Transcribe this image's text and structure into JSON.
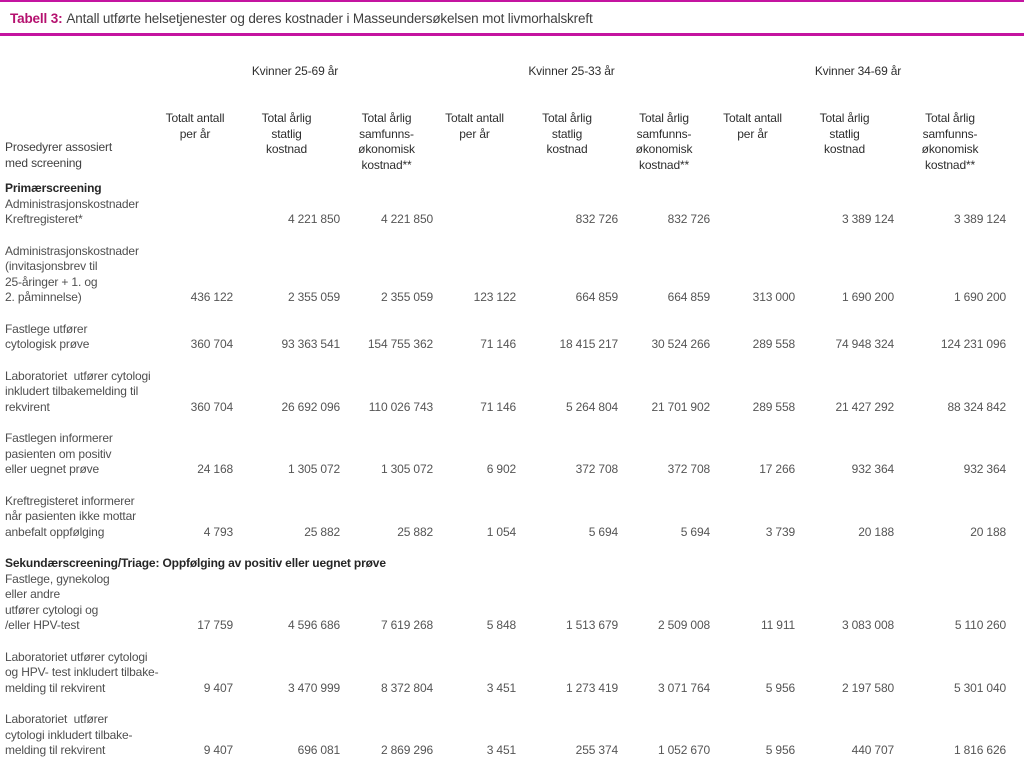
{
  "title": {
    "label": "Tabell 3:",
    "text": "Antall utførte helsetjenester og deres kostnader i Masseundersøkelsen mot livmorhalskreft"
  },
  "colors": {
    "accent_text": "#b5116f",
    "accent_line": "#c414a0",
    "header_text": "#2e2e2e",
    "body_text": "#4f4f4f"
  },
  "table": {
    "row_header": "Prosedyrer assosiert\nmed screening",
    "groups": [
      {
        "label": "Kvinner 25-69 år"
      },
      {
        "label": "Kvinner 25-33 år"
      },
      {
        "label": "Kvinner 34-69 år"
      }
    ],
    "columns": [
      "Totalt antall\nper år",
      "Total årlig\nstatlig\nkostnad",
      "Total årlig\nsamfunns-\nøkonomisk\nkostnad**"
    ],
    "sections": [
      {
        "heading": "Primærscreening",
        "rows": [
          {
            "label": "Administrasjonskostnader\nKreftregisteret*",
            "values": [
              "",
              "4 221 850",
              "4 221 850",
              "",
              "832 726",
              "832 726",
              "",
              "3 389 124",
              "3 389 124"
            ]
          },
          {
            "label": "Administrasjonskostnader\n(invitasjonsbrev til\n25-åringer + 1. og\n2. påminnelse)",
            "values": [
              "436 122",
              "2 355 059",
              "2 355 059",
              "123 122",
              "664 859",
              "664 859",
              "313 000",
              "1 690 200",
              "1 690 200"
            ]
          },
          {
            "label": "Fastlege utfører\ncytologisk prøve",
            "values": [
              "360 704",
              "93 363 541",
              "154 755 362",
              "71 146",
              "18 415 217",
              "30 524 266",
              "289 558",
              "74 948 324",
              "124 231 096"
            ]
          },
          {
            "label": "Laboratoriet  utfører cytologi\ninkludert tilbakemelding til\nrekvirent",
            "values": [
              "360 704",
              "26 692 096",
              "110 026 743",
              "71 146",
              "5 264 804",
              "21 701 902",
              "289 558",
              "21 427 292",
              "88 324 842"
            ]
          },
          {
            "label": "Fastlegen informerer\npasienten om positiv\neller uegnet prøve",
            "values": [
              "24 168",
              "1 305 072",
              "1 305 072",
              "6 902",
              "372 708",
              "372 708",
              "17 266",
              "932 364",
              "932 364"
            ]
          },
          {
            "label": "Kreftregisteret informerer\nnår pasienten ikke mottar\nanbefalt oppfølging",
            "values": [
              "4 793",
              "25 882",
              "25 882",
              "1 054",
              "5 694",
              "5 694",
              "3 739",
              "20 188",
              "20 188"
            ]
          }
        ]
      },
      {
        "heading": "Sekundærscreening/Triage: Oppfølging av positiv eller uegnet prøve",
        "rows": [
          {
            "label": "Fastlege, gynekolog\neller andre\nutfører cytologi og\n/eller HPV-test",
            "values": [
              "17 759",
              "4 596 686",
              "7 619 268",
              "5 848",
              "1 513 679",
              "2 509 008",
              "11 911",
              "3 083 008",
              "5 110 260"
            ]
          },
          {
            "label": "Laboratoriet utfører cytologi\nog HPV- test inkludert tilbake-\nmelding til rekvirent",
            "values": [
              "9 407",
              "3 470 999",
              "8 372 804",
              "3 451",
              "1 273 419",
              "3 071 764",
              "5 956",
              "2 197 580",
              "5 301 040"
            ]
          },
          {
            "label": "Laboratoriet  utfører\ncytologi inkludert tilbake-\nmelding til rekvirent",
            "values": [
              "9 407",
              "696 081",
              "2 869 296",
              "3 451",
              "255 374",
              "1 052 670",
              "5 956",
              "440 707",
              "1 816 626"
            ]
          }
        ]
      }
    ]
  }
}
